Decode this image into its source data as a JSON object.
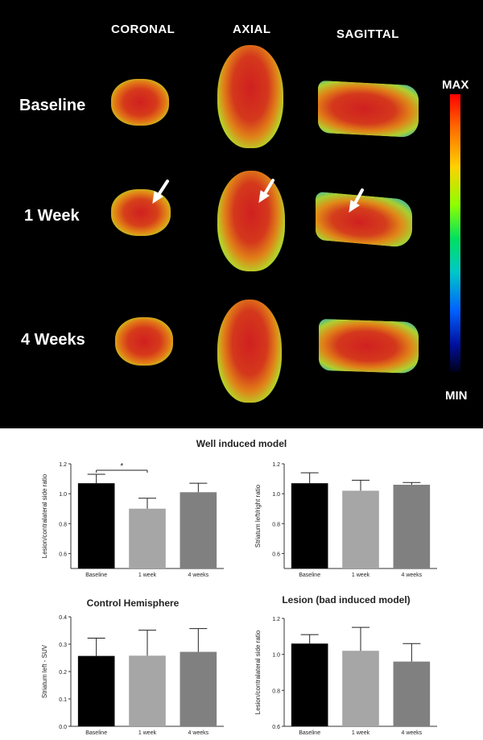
{
  "pet_figure": {
    "view_headers": [
      "CORONAL",
      "AXIAL",
      "SAGITTAL"
    ],
    "row_labels": [
      "Baseline",
      "1 Week",
      "4 Weeks"
    ],
    "colorbar": {
      "max_label": "MAX",
      "min_label": "MIN"
    },
    "arrows_on_row": "1 Week"
  },
  "section_title": "Well induced model",
  "chart_data": [
    {
      "type": "bar",
      "title": "",
      "categories": [
        "Baseline",
        "1 week",
        "4 weeks"
      ],
      "values": [
        1.07,
        0.9,
        1.01
      ],
      "errors": [
        0.06,
        0.07,
        0.06
      ],
      "colors": [
        "#000000",
        "#a6a6a6",
        "#808080"
      ],
      "ylabel": "Lesion/contralateral side ratio",
      "ylim": [
        0.5,
        1.2
      ],
      "yticks": [
        "0.6",
        "0.8",
        "1.0",
        "1.2"
      ],
      "significance": {
        "from": "Baseline",
        "to": "1 week",
        "label": "*"
      }
    },
    {
      "type": "bar",
      "title": "",
      "categories": [
        "Baseline",
        "1 week",
        "4 weeks"
      ],
      "values": [
        1.07,
        1.02,
        1.06
      ],
      "errors": [
        0.07,
        0.07,
        0.015
      ],
      "colors": [
        "#000000",
        "#a6a6a6",
        "#808080"
      ],
      "ylabel": "Striatum left/right ratio",
      "ylim": [
        0.5,
        1.2
      ],
      "yticks": [
        "0.6",
        "0.8",
        "1.0",
        "1.2"
      ]
    },
    {
      "type": "bar",
      "title": "Control Hemisphere",
      "categories": [
        "Baseline",
        "1 week",
        "4 weeks"
      ],
      "values": [
        0.257,
        0.258,
        0.272
      ],
      "errors": [
        0.065,
        0.093,
        0.085
      ],
      "colors": [
        "#000000",
        "#a6a6a6",
        "#808080"
      ],
      "ylabel": "Striatum left - SUV",
      "ylim": [
        0.0,
        0.4
      ],
      "yticks": [
        "0.0",
        "0.1",
        "0.2",
        "0.3",
        "0.4"
      ]
    },
    {
      "type": "bar",
      "title": "Lesion (bad induced model)",
      "categories": [
        "Baseline",
        "1 week",
        "4 weeks"
      ],
      "values": [
        1.06,
        1.02,
        0.96
      ],
      "errors": [
        0.05,
        0.13,
        0.1
      ],
      "colors": [
        "#000000",
        "#a6a6a6",
        "#808080"
      ],
      "ylabel": "Lesion/contralateral side ratio",
      "ylim": [
        0.6,
        1.2
      ],
      "yticks": [
        "0.6",
        "0.8",
        "1.0",
        "1.2"
      ]
    }
  ]
}
